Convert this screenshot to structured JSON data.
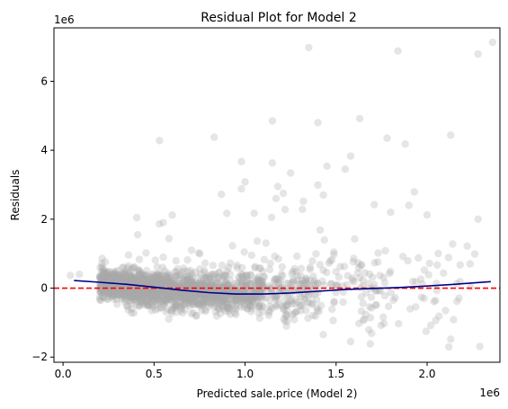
{
  "chart_data": {
    "type": "scatter",
    "title": "Residual Plot for Model 2",
    "xlabel": "Predicted sale.price (Model 2)",
    "ylabel": "Residuals",
    "x_offset_label": "1e6",
    "y_offset_label": "1e6",
    "xlim": [
      -0.05,
      2.4
    ],
    "ylim": [
      -2.15,
      7.55
    ],
    "x_ticks": [
      0.0,
      0.5,
      1.0,
      1.5,
      2.0
    ],
    "x_tick_labels": [
      "0.0",
      "0.5",
      "1.0",
      "1.5",
      "2.0"
    ],
    "y_ticks": [
      -2,
      0,
      2,
      4,
      6
    ],
    "y_tick_labels": [
      "−2",
      "0",
      "2",
      "4",
      "6"
    ],
    "grid": false,
    "legend": "none",
    "colors": {
      "points": "#a9a9a9",
      "lowess": "#00008b",
      "zero_line": "#ff0000"
    },
    "reference_line": {
      "y": 0,
      "style": "dashed"
    },
    "lowess_curve": {
      "x": [
        0.06,
        0.2,
        0.35,
        0.5,
        0.65,
        0.8,
        0.95,
        1.1,
        1.25,
        1.4,
        1.55,
        1.7,
        1.85,
        2.0,
        2.15,
        2.35
      ],
      "y": [
        0.22,
        0.17,
        0.11,
        0.03,
        -0.06,
        -0.13,
        -0.17,
        -0.17,
        -0.14,
        -0.09,
        -0.04,
        -0.01,
        0.02,
        0.06,
        0.11,
        0.19
      ]
    },
    "outliers": [
      [
        0.53,
        4.28
      ],
      [
        0.83,
        4.38
      ],
      [
        0.87,
        2.72
      ],
      [
        0.98,
        3.67
      ],
      [
        0.98,
        2.88
      ],
      [
        1.05,
        2.17
      ],
      [
        1.15,
        4.85
      ],
      [
        1.15,
        3.63
      ],
      [
        1.18,
        2.95
      ],
      [
        1.17,
        2.6
      ],
      [
        1.21,
        2.75
      ],
      [
        1.22,
        2.28
      ],
      [
        1.35,
        6.98
      ],
      [
        1.4,
        4.8
      ],
      [
        1.4,
        2.99
      ],
      [
        1.45,
        3.54
      ],
      [
        1.55,
        3.45
      ],
      [
        1.58,
        3.83
      ],
      [
        1.63,
        4.92
      ],
      [
        1.78,
        4.35
      ],
      [
        1.8,
        2.2
      ],
      [
        1.84,
        6.88
      ],
      [
        1.88,
        4.18
      ],
      [
        1.9,
        2.4
      ],
      [
        2.0,
        2.12
      ],
      [
        2.13,
        4.44
      ],
      [
        2.28,
        6.79
      ],
      [
        2.28,
        2.0
      ],
      [
        2.36,
        7.13
      ],
      [
        1.25,
        3.34
      ],
      [
        1.0,
        3.08
      ],
      [
        0.9,
        2.17
      ],
      [
        1.32,
        2.52
      ],
      [
        1.43,
        2.7
      ],
      [
        1.71,
        2.42
      ],
      [
        1.93,
        2.79
      ],
      [
        0.6,
        2.12
      ],
      [
        0.41,
        1.55
      ],
      [
        2.22,
        1.22
      ],
      [
        2.14,
        1.28
      ],
      [
        2.29,
        -1.69
      ],
      [
        2.13,
        -1.48
      ],
      [
        1.58,
        -1.55
      ],
      [
        1.68,
        -1.21
      ],
      [
        1.43,
        -1.35
      ],
      [
        2.02,
        -1.08
      ],
      [
        0.09,
        0.4
      ],
      [
        0.04,
        0.37
      ],
      [
        0.55,
        1.9
      ]
    ],
    "bulk_clusters": [
      {
        "x_range": [
          0.2,
          0.5
        ],
        "y_center_start": 0.12,
        "y_center_end": -0.05,
        "y_spread": 0.22,
        "count": 700
      },
      {
        "x_range": [
          0.5,
          0.8
        ],
        "y_center_start": -0.03,
        "y_center_end": -0.14,
        "y_spread": 0.26,
        "count": 600
      },
      {
        "x_range": [
          0.8,
          1.1
        ],
        "y_center_start": -0.14,
        "y_center_end": -0.18,
        "y_spread": 0.3,
        "count": 380
      },
      {
        "x_range": [
          1.1,
          1.4
        ],
        "y_center_start": -0.17,
        "y_center_end": -0.1,
        "y_spread": 0.42,
        "count": 160
      },
      {
        "x_range": [
          1.4,
          1.8
        ],
        "y_center_start": -0.1,
        "y_center_end": 0.0,
        "y_spread": 0.6,
        "count": 90
      },
      {
        "x_range": [
          1.8,
          2.3
        ],
        "y_center_start": 0.0,
        "y_center_end": 0.1,
        "y_spread": 0.75,
        "count": 40
      }
    ]
  }
}
